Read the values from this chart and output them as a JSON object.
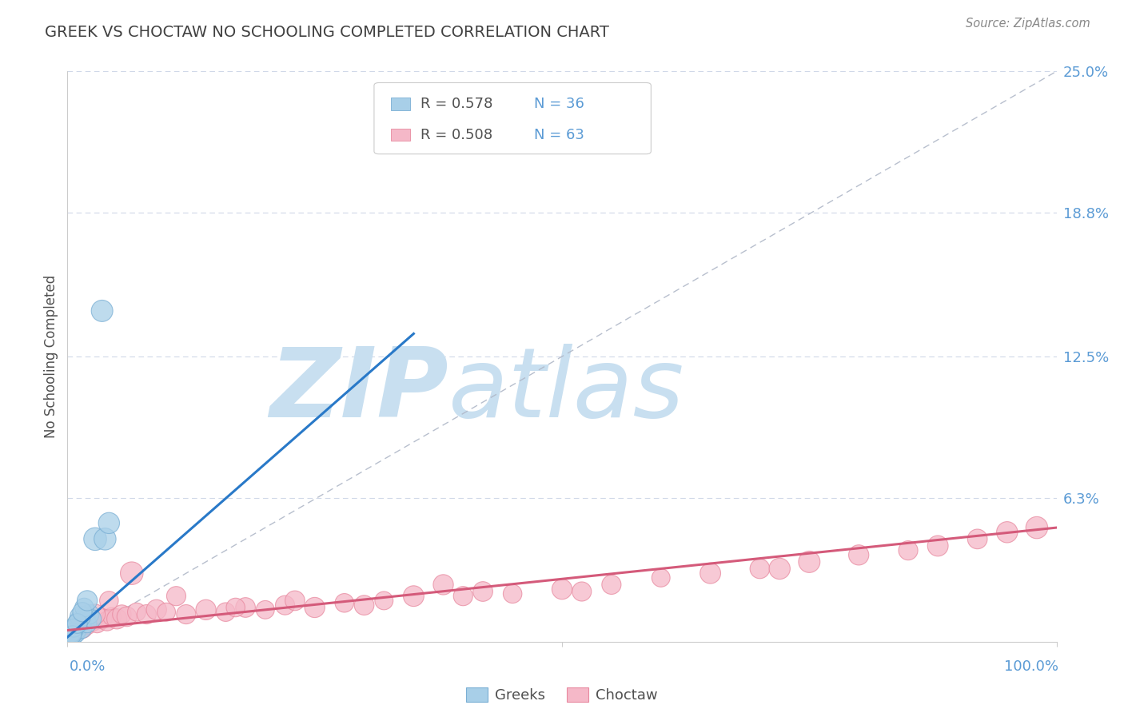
{
  "title": "GREEK VS CHOCTAW NO SCHOOLING COMPLETED CORRELATION CHART",
  "source": "Source: ZipAtlas.com",
  "ylabel": "No Schooling Completed",
  "xlabel": "",
  "xlim": [
    0,
    100
  ],
  "ylim": [
    0,
    25
  ],
  "yticks": [
    0,
    6.3,
    12.5,
    18.8,
    25.0
  ],
  "ytick_labels": [
    "",
    "6.3%",
    "12.5%",
    "18.8%",
    "25.0%"
  ],
  "legend_r1": "R = 0.578",
  "legend_n1": "N = 36",
  "legend_r2": "R = 0.508",
  "legend_n2": "N = 63",
  "greek_color": "#a8cfe8",
  "greek_edge_color": "#7aafd4",
  "choctaw_color": "#f5b8c8",
  "choctaw_edge_color": "#e88aa0",
  "greek_line_color": "#2979c8",
  "choctaw_line_color": "#d45a7a",
  "ref_line_color": "#b0b8c8",
  "background_color": "#ffffff",
  "title_color": "#404040",
  "axis_label_color": "#505050",
  "tick_label_color": "#5b9bd5",
  "watermark_zip_color": "#c8dff0",
  "watermark_atlas_color": "#c8dff0",
  "grid_color": "#d0d8e8",
  "greek_line_x": [
    0.0,
    35.0
  ],
  "greek_line_y": [
    0.2,
    13.5
  ],
  "choctaw_line_x": [
    0.0,
    100.0
  ],
  "choctaw_line_y": [
    0.5,
    5.0
  ],
  "ref_line_x": [
    0,
    100
  ],
  "ref_line_y": [
    0,
    25
  ],
  "greek_pts_x": [
    0.1,
    0.2,
    0.3,
    0.4,
    0.5,
    0.6,
    0.7,
    0.8,
    0.9,
    1.0,
    1.2,
    1.4,
    1.5,
    1.6,
    1.8,
    2.0,
    2.2,
    2.5,
    0.15,
    0.35,
    0.55,
    0.75,
    1.1,
    1.3,
    1.7,
    2.8,
    3.5,
    0.25,
    0.45,
    0.65,
    3.8,
    4.2,
    0.5,
    1.0,
    1.5,
    2.0
  ],
  "greek_pts_y": [
    0.1,
    0.3,
    0.2,
    0.4,
    0.3,
    0.5,
    0.6,
    0.4,
    0.5,
    0.7,
    0.8,
    0.6,
    0.9,
    1.0,
    1.1,
    0.8,
    1.2,
    1.0,
    0.2,
    0.3,
    0.5,
    0.7,
    0.9,
    1.1,
    1.5,
    4.5,
    14.5,
    0.2,
    0.4,
    0.6,
    4.5,
    5.2,
    0.3,
    0.8,
    1.3,
    1.8
  ],
  "greek_sizes": [
    200,
    180,
    220,
    160,
    250,
    190,
    170,
    230,
    200,
    210,
    180,
    240,
    200,
    170,
    220,
    190,
    210,
    180,
    150,
    200,
    220,
    180,
    200,
    230,
    190,
    280,
    250,
    160,
    200,
    180,
    260,
    240,
    180,
    210,
    200,
    220
  ],
  "choctaw_pts_x": [
    0.05,
    0.1,
    0.15,
    0.2,
    0.3,
    0.4,
    0.5,
    0.6,
    0.8,
    1.0,
    1.2,
    1.5,
    1.8,
    2.0,
    2.5,
    3.0,
    3.5,
    4.0,
    4.5,
    5.0,
    5.5,
    6.0,
    7.0,
    8.0,
    9.0,
    10.0,
    12.0,
    14.0,
    16.0,
    18.0,
    20.0,
    22.0,
    25.0,
    28.0,
    30.0,
    32.0,
    35.0,
    40.0,
    42.0,
    45.0,
    50.0,
    55.0,
    60.0,
    65.0,
    70.0,
    75.0,
    80.0,
    85.0,
    88.0,
    92.0,
    95.0,
    0.7,
    1.3,
    2.8,
    4.2,
    6.5,
    11.0,
    17.0,
    23.0,
    38.0,
    52.0,
    72.0,
    98.0
  ],
  "choctaw_pts_y": [
    0.1,
    0.2,
    0.3,
    0.2,
    0.4,
    0.3,
    0.5,
    0.4,
    0.6,
    0.5,
    0.7,
    0.6,
    0.8,
    0.7,
    0.9,
    0.8,
    1.0,
    0.9,
    1.1,
    1.0,
    1.2,
    1.1,
    1.3,
    1.2,
    1.4,
    1.3,
    1.2,
    1.4,
    1.3,
    1.5,
    1.4,
    1.6,
    1.5,
    1.7,
    1.6,
    1.8,
    2.0,
    2.0,
    2.2,
    2.1,
    2.3,
    2.5,
    2.8,
    3.0,
    3.2,
    3.5,
    3.8,
    4.0,
    4.2,
    4.5,
    4.8,
    0.5,
    0.8,
    1.2,
    1.8,
    3.0,
    2.0,
    1.5,
    1.8,
    2.5,
    2.2,
    3.2,
    5.0
  ],
  "choctaw_sizes": [
    150,
    180,
    160,
    200,
    170,
    220,
    190,
    180,
    210,
    200,
    180,
    230,
    200,
    170,
    220,
    190,
    210,
    200,
    180,
    220,
    190,
    210,
    180,
    200,
    220,
    180,
    200,
    220,
    190,
    210,
    180,
    200,
    220,
    190,
    210,
    180,
    230,
    200,
    210,
    190,
    220,
    200,
    180,
    230,
    210,
    250,
    220,
    200,
    230,
    210,
    240,
    180,
    200,
    220,
    190,
    280,
    200,
    190,
    210,
    220,
    200,
    240,
    260
  ]
}
